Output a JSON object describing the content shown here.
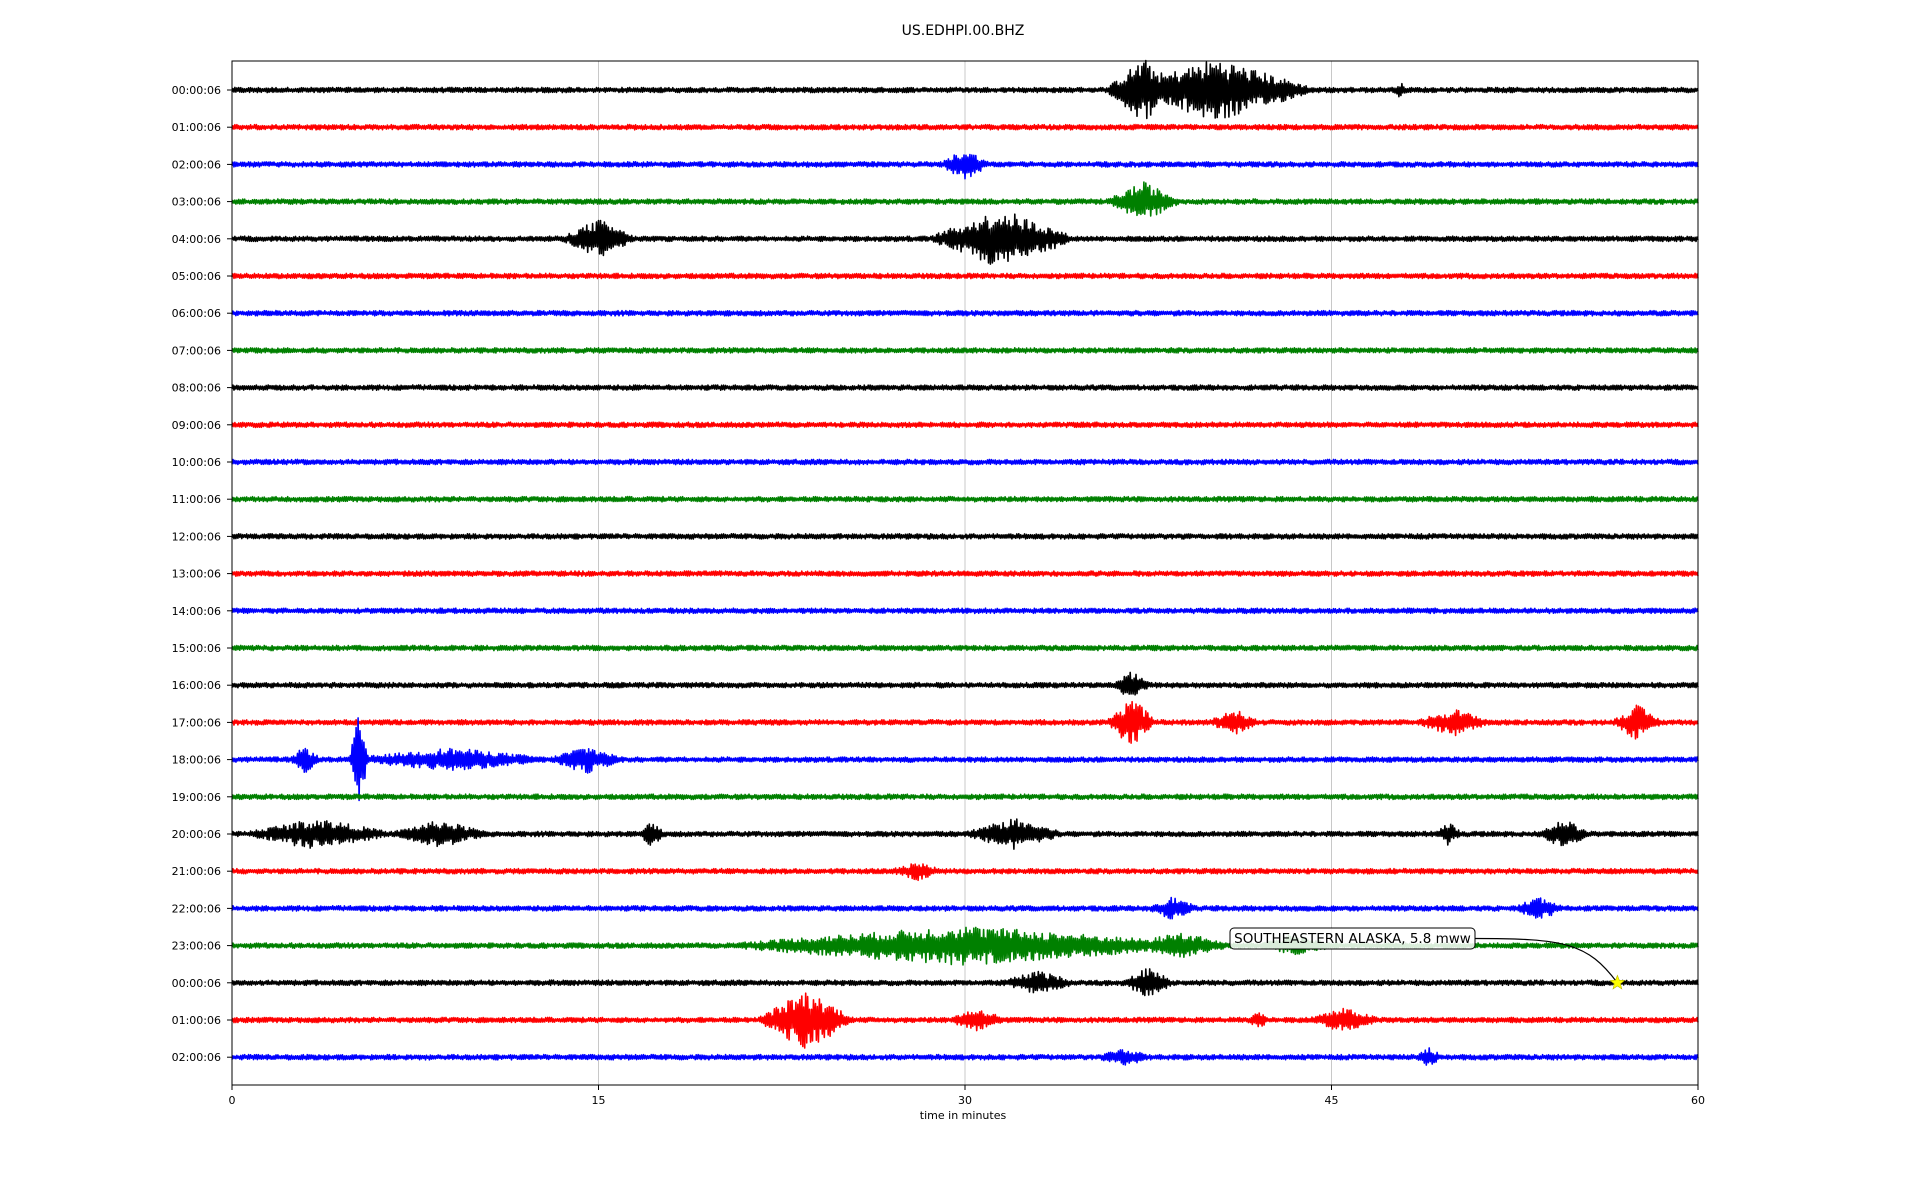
{
  "chart_data": {
    "type": "line",
    "title": "US.EDHPI.00.BHZ",
    "xlabel": "time in minutes",
    "xlim": [
      0,
      60
    ],
    "xticks": [
      0,
      15,
      30,
      45,
      60
    ],
    "grid_x": true,
    "row_labels": [
      "00:00:06",
      "01:00:06",
      "02:00:06",
      "03:00:06",
      "04:00:06",
      "05:00:06",
      "06:00:06",
      "07:00:06",
      "08:00:06",
      "09:00:06",
      "10:00:06",
      "11:00:06",
      "12:00:06",
      "13:00:06",
      "14:00:06",
      "15:00:06",
      "16:00:06",
      "17:00:06",
      "18:00:06",
      "19:00:06",
      "20:00:06",
      "21:00:06",
      "22:00:06",
      "23:00:06",
      "00:00:06",
      "01:00:06",
      "02:00:06"
    ],
    "trace_colors": [
      "#000000",
      "#ff0000",
      "#0000ff",
      "#008000"
    ],
    "annotation": {
      "text": "SOUTHEASTERN ALASKA, 5.8 mww",
      "row": 24,
      "minute": 56.7,
      "marker_color": "#ffff00"
    }
  }
}
